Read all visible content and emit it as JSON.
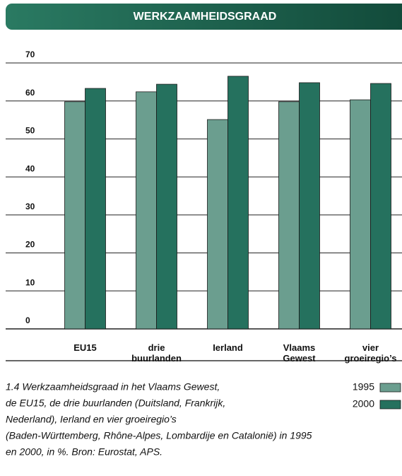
{
  "chart_data": {
    "type": "bar",
    "title": "WERKZAAMHEIDSGRAAD",
    "categories": [
      "EU15",
      "drie buurlanden",
      "Ierland",
      "Vlaams Gewest",
      "vier groeiregio’s"
    ],
    "series": [
      {
        "name": "1995",
        "color": "#6b9e8f",
        "values": [
          59.8,
          62.4,
          55.1,
          59.8,
          60.3
        ]
      },
      {
        "name": "2000",
        "color": "#25715e",
        "values": [
          63.3,
          64.4,
          66.5,
          64.8,
          64.6
        ]
      }
    ],
    "ylim": [
      0,
      70
    ],
    "yticks": [
      0,
      10,
      20,
      30,
      40,
      50,
      60,
      70
    ],
    "grid": true,
    "caption": [
      "1.4  Werkzaamheidsgraad in het Vlaams Gewest,",
      "de EU15, de drie buurlanden (Duitsland, Frankrijk,",
      "Nederland), Ierland en vier groeiregio’s",
      "(Baden-Württemberg, Rhône-Alpes, Lombardije en Catalonië) in 1995",
      "en 2000, in %. Bron: Eurostat, APS."
    ]
  }
}
